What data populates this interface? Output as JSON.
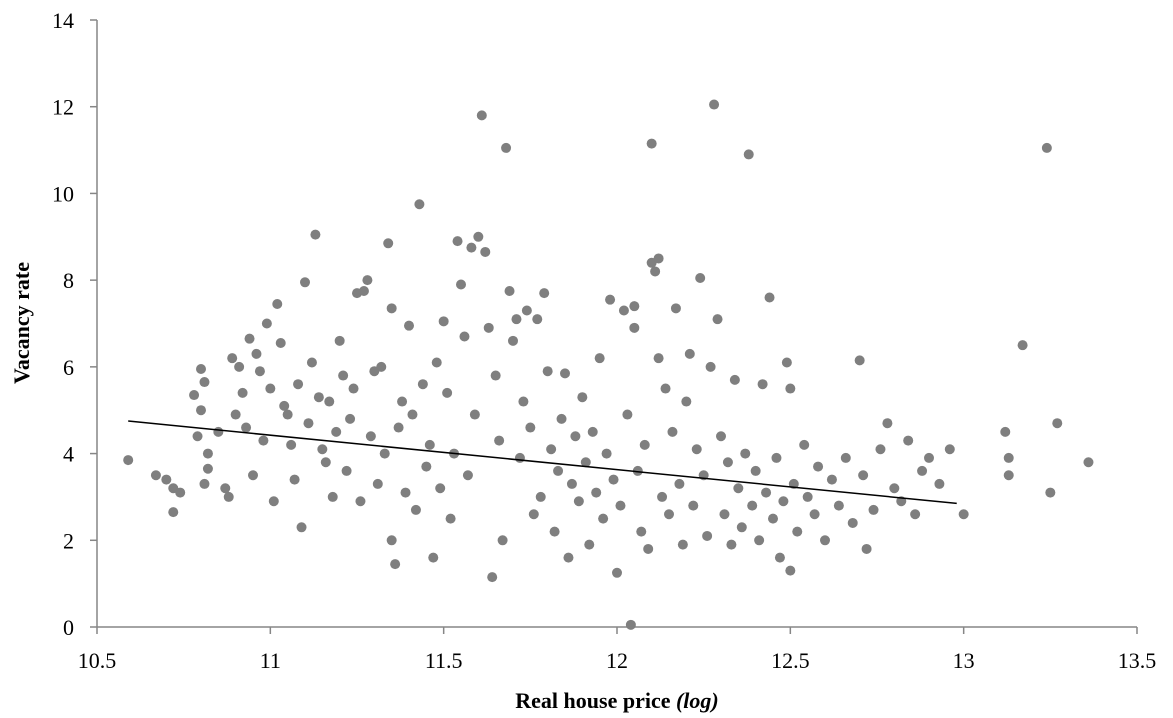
{
  "chart_data": {
    "type": "scatter",
    "title": "",
    "xlabel": "Real house price",
    "xlabel_suffix": "(log)",
    "ylabel": "Vacancy rate",
    "xlim": [
      10.5,
      13.5
    ],
    "ylim": [
      0,
      14
    ],
    "x_ticks": [
      "10.5",
      "11",
      "11.5",
      "12",
      "12.5",
      "13",
      "13.5"
    ],
    "y_ticks": [
      "0",
      "2",
      "4",
      "6",
      "8",
      "10",
      "12",
      "14"
    ],
    "grid": false,
    "legend": "none",
    "point_color": "#7f7f7f",
    "trendline_color": "#000000",
    "trendline": {
      "x": [
        10.59,
        12.98
      ],
      "y": [
        4.75,
        2.85
      ]
    },
    "series": [
      {
        "points": [
          [
            10.59,
            3.85
          ],
          [
            10.67,
            3.5
          ],
          [
            10.7,
            3.4
          ],
          [
            10.72,
            2.65
          ],
          [
            10.72,
            3.2
          ],
          [
            10.74,
            3.1
          ],
          [
            10.78,
            5.35
          ],
          [
            10.79,
            4.4
          ],
          [
            10.8,
            5.0
          ],
          [
            10.81,
            3.3
          ],
          [
            10.8,
            5.95
          ],
          [
            10.81,
            5.65
          ],
          [
            10.82,
            4.0
          ],
          [
            10.82,
            3.65
          ],
          [
            10.85,
            4.5
          ],
          [
            10.87,
            3.2
          ],
          [
            10.88,
            3.0
          ],
          [
            10.89,
            6.2
          ],
          [
            10.9,
            4.9
          ],
          [
            10.91,
            6.0
          ],
          [
            10.92,
            5.4
          ],
          [
            10.93,
            4.6
          ],
          [
            10.94,
            6.65
          ],
          [
            10.95,
            3.5
          ],
          [
            10.96,
            6.3
          ],
          [
            10.97,
            5.9
          ],
          [
            10.98,
            4.3
          ],
          [
            10.99,
            7.0
          ],
          [
            11.0,
            5.5
          ],
          [
            11.01,
            2.9
          ],
          [
            11.02,
            7.45
          ],
          [
            11.03,
            6.55
          ],
          [
            11.04,
            5.1
          ],
          [
            11.05,
            4.9
          ],
          [
            11.06,
            4.2
          ],
          [
            11.07,
            3.4
          ],
          [
            11.08,
            5.6
          ],
          [
            11.09,
            2.3
          ],
          [
            11.1,
            7.95
          ],
          [
            11.11,
            4.7
          ],
          [
            11.12,
            6.1
          ],
          [
            11.13,
            9.05
          ],
          [
            11.14,
            5.3
          ],
          [
            11.15,
            4.1
          ],
          [
            11.16,
            3.8
          ],
          [
            11.17,
            5.2
          ],
          [
            11.18,
            3.0
          ],
          [
            11.19,
            4.5
          ],
          [
            11.2,
            6.6
          ],
          [
            11.21,
            5.8
          ],
          [
            11.22,
            3.6
          ],
          [
            11.23,
            4.8
          ],
          [
            11.24,
            5.5
          ],
          [
            11.25,
            7.7
          ],
          [
            11.26,
            2.9
          ],
          [
            11.27,
            7.75
          ],
          [
            11.28,
            8.0
          ],
          [
            11.29,
            4.4
          ],
          [
            11.3,
            5.9
          ],
          [
            11.31,
            3.3
          ],
          [
            11.32,
            6.0
          ],
          [
            11.33,
            4.0
          ],
          [
            11.34,
            8.85
          ],
          [
            11.35,
            7.35
          ],
          [
            11.35,
            2.0
          ],
          [
            11.36,
            1.45
          ],
          [
            11.37,
            4.6
          ],
          [
            11.38,
            5.2
          ],
          [
            11.39,
            3.1
          ],
          [
            11.4,
            6.95
          ],
          [
            11.41,
            4.9
          ],
          [
            11.42,
            2.7
          ],
          [
            11.43,
            9.75
          ],
          [
            11.44,
            5.6
          ],
          [
            11.45,
            3.7
          ],
          [
            11.46,
            4.2
          ],
          [
            11.47,
            1.6
          ],
          [
            11.48,
            6.1
          ],
          [
            11.49,
            3.2
          ],
          [
            11.5,
            7.05
          ],
          [
            11.51,
            5.4
          ],
          [
            11.52,
            2.5
          ],
          [
            11.53,
            4.0
          ],
          [
            11.54,
            8.9
          ],
          [
            11.55,
            7.9
          ],
          [
            11.56,
            6.7
          ],
          [
            11.57,
            3.5
          ],
          [
            11.58,
            8.75
          ],
          [
            11.59,
            4.9
          ],
          [
            11.6,
            9.0
          ],
          [
            11.61,
            11.8
          ],
          [
            11.62,
            8.65
          ],
          [
            11.63,
            6.9
          ],
          [
            11.64,
            1.15
          ],
          [
            11.65,
            5.8
          ],
          [
            11.66,
            4.3
          ],
          [
            11.67,
            2.0
          ],
          [
            11.68,
            11.05
          ],
          [
            11.69,
            7.75
          ],
          [
            11.7,
            6.6
          ],
          [
            11.71,
            7.1
          ],
          [
            11.72,
            3.9
          ],
          [
            11.73,
            5.2
          ],
          [
            11.74,
            7.3
          ],
          [
            11.75,
            4.6
          ],
          [
            11.76,
            2.6
          ],
          [
            11.77,
            7.1
          ],
          [
            11.78,
            3.0
          ],
          [
            11.79,
            7.7
          ],
          [
            11.8,
            5.9
          ],
          [
            11.81,
            4.1
          ],
          [
            11.82,
            2.2
          ],
          [
            11.83,
            3.6
          ],
          [
            11.84,
            4.8
          ],
          [
            11.85,
            5.85
          ],
          [
            11.86,
            1.6
          ],
          [
            11.87,
            3.3
          ],
          [
            11.88,
            4.4
          ],
          [
            11.89,
            2.9
          ],
          [
            11.9,
            5.3
          ],
          [
            11.91,
            3.8
          ],
          [
            11.92,
            1.9
          ],
          [
            11.93,
            4.5
          ],
          [
            11.94,
            3.1
          ],
          [
            11.95,
            6.2
          ],
          [
            11.96,
            2.5
          ],
          [
            11.97,
            4.0
          ],
          [
            11.98,
            7.55
          ],
          [
            11.99,
            3.4
          ],
          [
            12.0,
            1.25
          ],
          [
            12.01,
            2.8
          ],
          [
            12.02,
            7.3
          ],
          [
            12.03,
            4.9
          ],
          [
            12.04,
            0.05
          ],
          [
            12.05,
            7.4
          ],
          [
            12.05,
            6.9
          ],
          [
            12.06,
            3.6
          ],
          [
            12.07,
            2.2
          ],
          [
            12.08,
            4.2
          ],
          [
            12.09,
            1.8
          ],
          [
            12.1,
            11.15
          ],
          [
            12.1,
            8.4
          ],
          [
            12.11,
            8.2
          ],
          [
            12.12,
            8.5
          ],
          [
            12.12,
            6.2
          ],
          [
            12.13,
            3.0
          ],
          [
            12.14,
            5.5
          ],
          [
            12.15,
            2.6
          ],
          [
            12.16,
            4.5
          ],
          [
            12.17,
            7.35
          ],
          [
            12.18,
            3.3
          ],
          [
            12.19,
            1.9
          ],
          [
            12.2,
            5.2
          ],
          [
            12.21,
            6.3
          ],
          [
            12.22,
            2.8
          ],
          [
            12.23,
            4.1
          ],
          [
            12.24,
            8.05
          ],
          [
            12.25,
            3.5
          ],
          [
            12.26,
            2.1
          ],
          [
            12.27,
            6.0
          ],
          [
            12.28,
            12.05
          ],
          [
            12.29,
            7.1
          ],
          [
            12.3,
            4.4
          ],
          [
            12.31,
            2.6
          ],
          [
            12.32,
            3.8
          ],
          [
            12.33,
            1.9
          ],
          [
            12.34,
            5.7
          ],
          [
            12.35,
            3.2
          ],
          [
            12.36,
            2.3
          ],
          [
            12.37,
            4.0
          ],
          [
            12.38,
            10.9
          ],
          [
            12.39,
            2.8
          ],
          [
            12.4,
            3.6
          ],
          [
            12.41,
            2.0
          ],
          [
            12.42,
            5.6
          ],
          [
            12.43,
            3.1
          ],
          [
            12.44,
            7.6
          ],
          [
            12.45,
            2.5
          ],
          [
            12.46,
            3.9
          ],
          [
            12.47,
            1.6
          ],
          [
            12.48,
            2.9
          ],
          [
            12.49,
            6.1
          ],
          [
            12.5,
            5.5
          ],
          [
            12.5,
            1.3
          ],
          [
            12.51,
            3.3
          ],
          [
            12.52,
            2.2
          ],
          [
            12.54,
            4.2
          ],
          [
            12.55,
            3.0
          ],
          [
            12.57,
            2.6
          ],
          [
            12.58,
            3.7
          ],
          [
            12.6,
            2.0
          ],
          [
            12.62,
            3.4
          ],
          [
            12.64,
            2.8
          ],
          [
            12.66,
            3.9
          ],
          [
            12.68,
            2.4
          ],
          [
            12.7,
            6.15
          ],
          [
            12.71,
            3.5
          ],
          [
            12.72,
            1.8
          ],
          [
            12.74,
            2.7
          ],
          [
            12.76,
            4.1
          ],
          [
            12.78,
            4.7
          ],
          [
            12.8,
            3.2
          ],
          [
            12.82,
            2.9
          ],
          [
            12.84,
            4.3
          ],
          [
            12.86,
            2.6
          ],
          [
            12.88,
            3.6
          ],
          [
            12.9,
            3.9
          ],
          [
            12.93,
            3.3
          ],
          [
            12.96,
            4.1
          ],
          [
            13.0,
            2.6
          ],
          [
            13.12,
            4.5
          ],
          [
            13.13,
            3.9
          ],
          [
            13.13,
            3.5
          ],
          [
            13.17,
            6.5
          ],
          [
            13.24,
            11.05
          ],
          [
            13.25,
            3.1
          ],
          [
            13.27,
            4.7
          ],
          [
            13.36,
            3.8
          ]
        ]
      }
    ]
  }
}
